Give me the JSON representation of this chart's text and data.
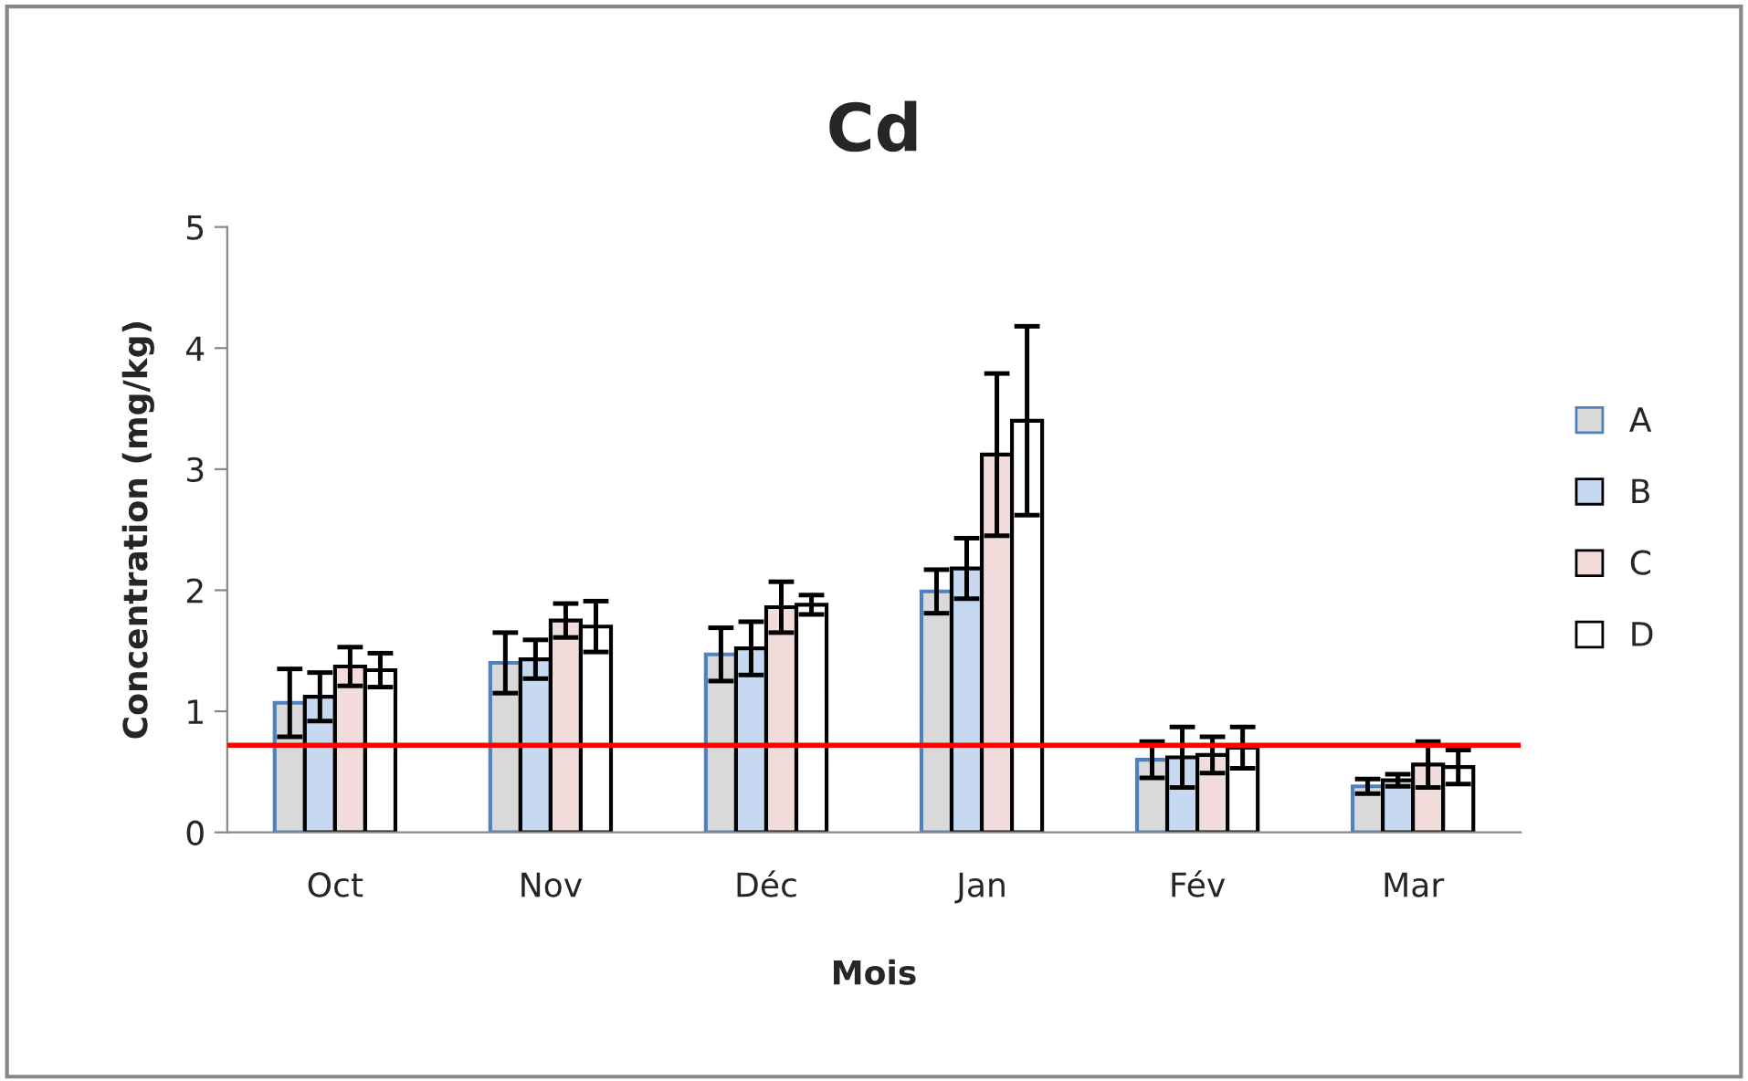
{
  "chart_data": {
    "type": "bar",
    "title": "Cd",
    "xlabel": "Mois",
    "ylabel": "Concentration (mg/kg)",
    "categories": [
      "Oct",
      "Nov",
      "Déc",
      "Jan",
      "Fév",
      "Mar"
    ],
    "series": [
      {
        "name": "A",
        "color": "#d9d9d9",
        "values": [
          1.07,
          1.4,
          1.47,
          1.99,
          0.6,
          0.38
        ],
        "errors": [
          0.28,
          0.25,
          0.22,
          0.18,
          0.15,
          0.06
        ]
      },
      {
        "name": "B",
        "color": "#c6d9f1",
        "values": [
          1.12,
          1.43,
          1.52,
          2.18,
          0.62,
          0.43
        ],
        "errors": [
          0.2,
          0.16,
          0.22,
          0.25,
          0.25,
          0.05
        ]
      },
      {
        "name": "C",
        "color": "#f2dcdb",
        "values": [
          1.37,
          1.75,
          1.86,
          3.12,
          0.64,
          0.56
        ],
        "errors": [
          0.16,
          0.14,
          0.21,
          0.67,
          0.15,
          0.19
        ]
      },
      {
        "name": "D",
        "color": "#ffffff",
        "values": [
          1.34,
          1.7,
          1.88,
          3.4,
          0.7,
          0.54
        ],
        "errors": [
          0.14,
          0.21,
          0.08,
          0.78,
          0.17,
          0.14
        ]
      }
    ],
    "ylim": [
      0,
      5
    ],
    "yticks": [
      0,
      1,
      2,
      3,
      4,
      5
    ],
    "grid": false,
    "legend": "right",
    "ref_lines": [
      {
        "axis": "y",
        "value": 0.72,
        "label": null,
        "color": "#ff0000"
      }
    ]
  }
}
